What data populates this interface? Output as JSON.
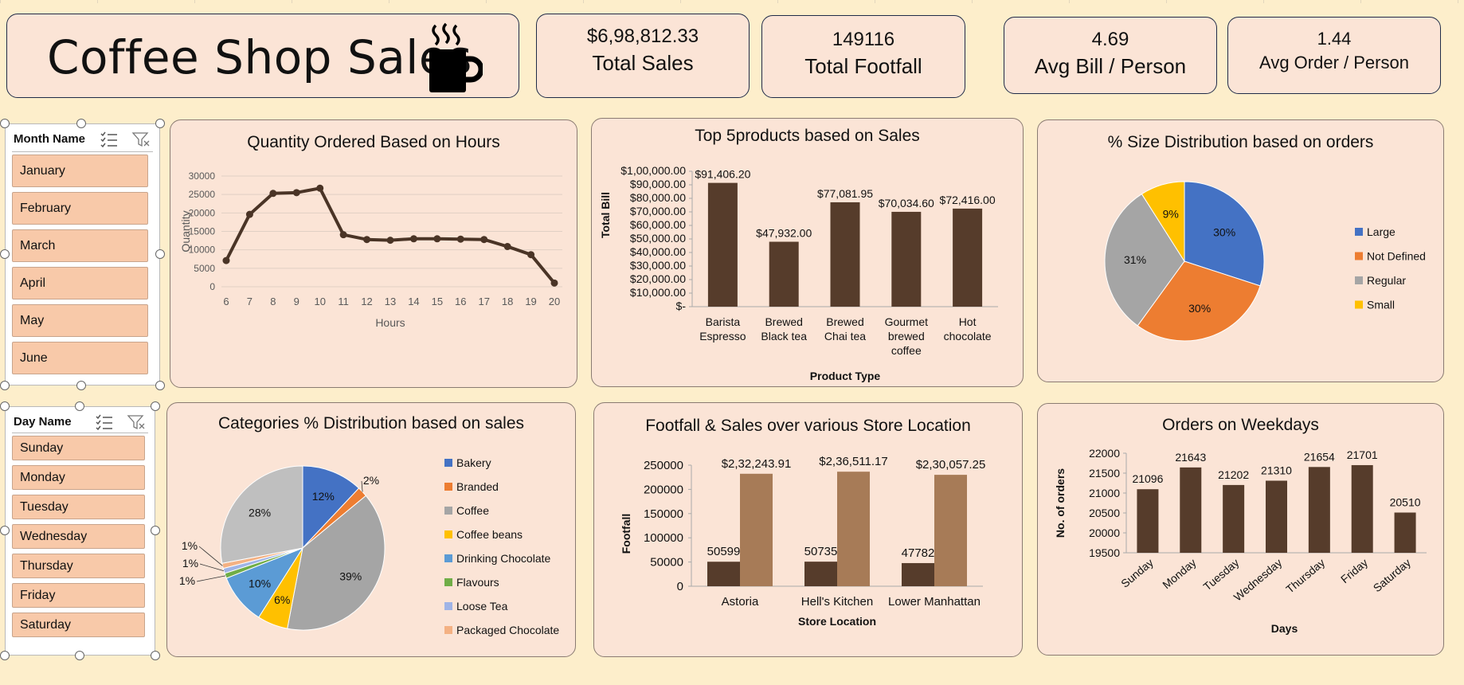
{
  "header": {
    "title": "Coffee Shop Sales",
    "kpis": [
      {
        "value": "$6,98,812.33",
        "label": "Total Sales"
      },
      {
        "value": "149116",
        "label": "Total Footfall"
      },
      {
        "value": "4.69",
        "label": "Avg Bill / Person"
      },
      {
        "value": "1.44",
        "label": "Avg Order / Person"
      }
    ]
  },
  "slicers": {
    "month": {
      "title": "Month Name",
      "items": [
        "January",
        "February",
        "March",
        "April",
        "May",
        "June"
      ]
    },
    "day": {
      "title": "Day Name",
      "items": [
        "Sunday",
        "Monday",
        "Tuesday",
        "Wednesday",
        "Thursday",
        "Friday",
        "Saturday"
      ]
    }
  },
  "colors": {
    "bar_dark": "#563c2b",
    "bar_light": "#a77b57",
    "panel_bg": "#fbe4d6",
    "page_bg": "#fdeecb",
    "slicer_item": "#f8c9a9"
  },
  "icons": {
    "header": "coffee-cup-icon",
    "multiselect": "multi-select-icon",
    "clear_filter": "clear-filter-icon"
  },
  "chart_data": [
    {
      "id": "hours",
      "type": "line",
      "title": "Quantity Ordered Based on Hours",
      "xlabel": "Hours",
      "ylabel": "Quantity",
      "x": [
        6,
        7,
        8,
        9,
        10,
        11,
        12,
        13,
        14,
        15,
        16,
        17,
        18,
        19,
        20
      ],
      "y": [
        7100,
        19600,
        25300,
        25500,
        26700,
        14100,
        12800,
        12600,
        13000,
        13000,
        12900,
        12800,
        10900,
        8700,
        1000
      ],
      "ylim": [
        0,
        30000
      ],
      "yticks": [
        0,
        5000,
        10000,
        15000,
        20000,
        25000,
        30000
      ],
      "grid": true,
      "color": "#4a3426"
    },
    {
      "id": "top5",
      "type": "bar",
      "title": "Top 5products based on Sales",
      "xlabel": "Product Type",
      "ylabel": "Total Bill",
      "categories": [
        [
          "Barista",
          "Espresso"
        ],
        [
          "Brewed",
          "Black tea"
        ],
        [
          "Brewed",
          "Chai tea"
        ],
        [
          "Gourmet",
          "brewed",
          "coffee"
        ],
        [
          "Hot",
          "chocolate"
        ]
      ],
      "values": [
        91406.2,
        47932.0,
        77081.95,
        70034.6,
        72416.0
      ],
      "data_labels": [
        "$91,406.20",
        "$47,932.00",
        "$77,081.95",
        "$70,034.60",
        "$72,416.00"
      ],
      "ylim": [
        0,
        100000
      ],
      "yticks": [
        0,
        10000,
        20000,
        30000,
        40000,
        50000,
        60000,
        70000,
        80000,
        90000,
        100000
      ],
      "ytick_labels": [
        "$-",
        "$10,000.00",
        "$20,000.00",
        "$30,000.00",
        "$40,000.00",
        "$50,000.00",
        "$60,000.00",
        "$70,000.00",
        "$80,000.00",
        "$90,000.00",
        "$1,00,000.00"
      ]
    },
    {
      "id": "size",
      "type": "pie",
      "title": "% Size Distribution based on orders",
      "series": [
        {
          "name": "Large",
          "value": 30,
          "label": "30%",
          "color": "#4472c4"
        },
        {
          "name": "Not Defined",
          "value": 30,
          "label": "30%",
          "color": "#ed7d31"
        },
        {
          "name": "Regular",
          "value": 31,
          "label": "31%",
          "color": "#a5a5a5"
        },
        {
          "name": "Small",
          "value": 9,
          "label": "9%",
          "color": "#ffc000"
        }
      ],
      "legend": "right"
    },
    {
      "id": "categories",
      "type": "pie",
      "title": "Categories % Distribution based on sales",
      "series": [
        {
          "name": "Bakery",
          "value": 12,
          "label": "12%",
          "color": "#4472c4"
        },
        {
          "name": "Branded",
          "value": 2,
          "label": "2%",
          "color": "#ed7d31"
        },
        {
          "name": "Coffee",
          "value": 39,
          "label": "39%",
          "color": "#a5a5a5"
        },
        {
          "name": "Coffee beans",
          "value": 6,
          "label": "6%",
          "color": "#ffc000"
        },
        {
          "name": "Drinking Chocolate",
          "value": 10,
          "label": "10%",
          "color": "#5b9bd5"
        },
        {
          "name": "Flavours",
          "value": 1,
          "label": "1%",
          "color": "#70ad47"
        },
        {
          "name": "Loose Tea",
          "value": 1,
          "label": "1%",
          "color": "#9fb4e6"
        },
        {
          "name": "Packaged Chocolate",
          "value": 1,
          "label": "1%",
          "color": "#f4b183"
        },
        {
          "name": "",
          "value": 28,
          "label": "28%",
          "color": "#bfbfbf"
        }
      ],
      "legend": "right"
    },
    {
      "id": "store",
      "type": "bar",
      "title": "Footfall & Sales over various Store Location",
      "xlabel": "Store Location",
      "ylabel": "Footfall",
      "categories": [
        "Astoria",
        "Hell's Kitchen",
        "Lower Manhattan"
      ],
      "series": [
        {
          "values": [
            50599,
            50735,
            47782
          ],
          "labels": [
            "50599",
            "50735",
            "47782"
          ],
          "color": "#563c2b"
        },
        {
          "values": [
            232243.91,
            236511.17,
            230057.25
          ],
          "labels": [
            "$2,32,243.91",
            "$2,36,511.17",
            "$2,30,057.25"
          ],
          "color": "#a77b57"
        }
      ],
      "ylim": [
        0,
        250000
      ],
      "yticks": [
        0,
        50000,
        100000,
        150000,
        200000,
        250000
      ]
    },
    {
      "id": "weekdays",
      "type": "bar",
      "title": "Orders on Weekdays",
      "xlabel": "Days",
      "ylabel": "No. of orders",
      "categories": [
        "Sunday",
        "Monday",
        "Tuesday",
        "Wednesday",
        "Thursday",
        "Friday",
        "Saturday"
      ],
      "values": [
        21096,
        21643,
        21202,
        21310,
        21654,
        21701,
        20510
      ],
      "ylim": [
        19500,
        22000
      ],
      "yticks": [
        19500,
        20000,
        20500,
        21000,
        21500,
        22000
      ]
    }
  ]
}
